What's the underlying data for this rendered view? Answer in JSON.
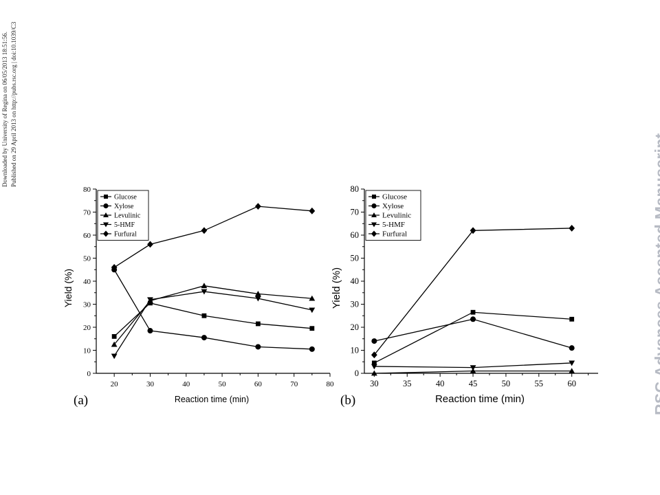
{
  "margin_notes": {
    "line1": "Downloaded by University of Regina on 06/05/2013 18:51:56.",
    "line2": "Published on 29 April 2013 on http://pubs.rsc.org | doi:10.1039/C3"
  },
  "watermark": "RSC Advances Accepted Manuscript",
  "colors": {
    "series": "#000000",
    "watermark": "#b7bbc4",
    "background": "#ffffff"
  },
  "marker_icons": {
    "Glucose": "square",
    "Xylose": "circle",
    "Levulinic": "triangle-up",
    "5-HMF": "triangle-down",
    "Furfural": "diamond"
  },
  "chart_data": [
    {
      "panel_label": "(a)",
      "type": "line",
      "xlabel": "Reaction time (min)",
      "ylabel": "Yield (%)",
      "xlim": [
        15,
        80
      ],
      "ylim": [
        0,
        80
      ],
      "xticks": [
        20,
        30,
        40,
        50,
        60,
        70,
        80
      ],
      "yticks": [
        0,
        10,
        20,
        30,
        40,
        50,
        60,
        70,
        80
      ],
      "grid": false,
      "legend_position": "top-left",
      "x": [
        20,
        30,
        45,
        60,
        75
      ],
      "series": [
        {
          "name": "Glucose",
          "marker": "square",
          "values": [
            16,
            30.5,
            25,
            21.5,
            19.5
          ]
        },
        {
          "name": "Xylose",
          "marker": "circle",
          "values": [
            45,
            18.5,
            15.5,
            11.5,
            10.5
          ]
        },
        {
          "name": "Levulinic",
          "marker": "triangle-up",
          "values": [
            12.5,
            31.5,
            38,
            34.5,
            32.5
          ]
        },
        {
          "name": "5-HMF",
          "marker": "triangle-down",
          "values": [
            7.5,
            32,
            35.5,
            32.5,
            27.5
          ]
        },
        {
          "name": "Furfural",
          "marker": "diamond",
          "values": [
            46,
            56,
            62,
            72.5,
            70.5
          ]
        }
      ]
    },
    {
      "panel_label": "(b)",
      "type": "line",
      "xlabel": "Reaction time (min)",
      "ylabel": "Yield (%)",
      "xlim": [
        28.5,
        64
      ],
      "ylim": [
        0,
        80
      ],
      "xticks": [
        30,
        35,
        40,
        45,
        50,
        55,
        60
      ],
      "yticks": [
        0,
        10,
        20,
        30,
        40,
        50,
        60,
        70,
        80
      ],
      "grid": false,
      "legend_position": "top-left",
      "x": [
        30,
        45,
        60
      ],
      "series": [
        {
          "name": "Glucose",
          "marker": "square",
          "values": [
            4.5,
            26.5,
            23.5
          ]
        },
        {
          "name": "Xylose",
          "marker": "circle",
          "values": [
            14,
            23.5,
            11
          ]
        },
        {
          "name": "Levulinic",
          "marker": "triangle-up",
          "values": [
            0,
            1,
            1
          ]
        },
        {
          "name": "5-HMF",
          "marker": "triangle-down",
          "values": [
            3,
            2.5,
            4.5
          ]
        },
        {
          "name": "Furfural",
          "marker": "diamond",
          "values": [
            8,
            62,
            63
          ]
        }
      ]
    }
  ]
}
